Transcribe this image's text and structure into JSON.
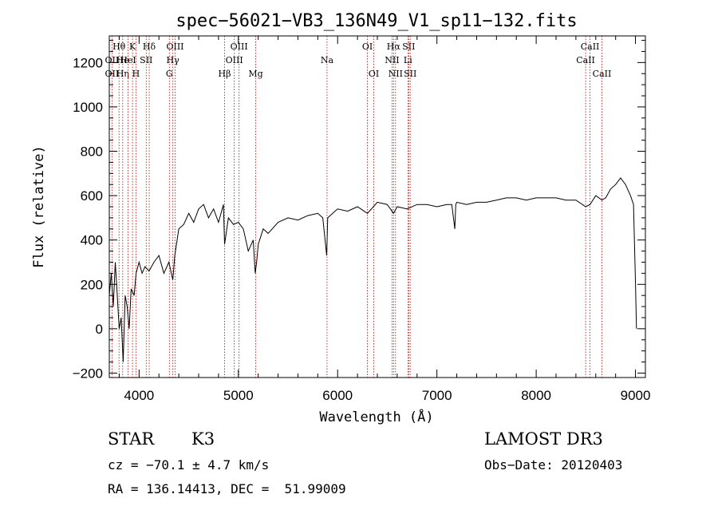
{
  "chart_data": {
    "type": "line",
    "title": "spec−56021−VB3_136N49_V1_sp11−132.fits",
    "xlabel": "Wavelength (Å)",
    "ylabel": "Flux (relative)",
    "xlim": [
      3700,
      9100
    ],
    "ylim": [
      -220,
      1320
    ],
    "xticks": [
      4000,
      5000,
      6000,
      7000,
      8000,
      9000
    ],
    "yticks": [
      -200,
      0,
      200,
      400,
      600,
      800,
      1000,
      1200
    ],
    "series": [
      {
        "name": "spectrum",
        "x": [
          3700,
          3720,
          3740,
          3760,
          3780,
          3800,
          3820,
          3840,
          3860,
          3880,
          3900,
          3920,
          3950,
          3970,
          4000,
          4030,
          4060,
          4100,
          4150,
          4200,
          4250,
          4300,
          4340,
          4360,
          4400,
          4450,
          4500,
          4550,
          4600,
          4650,
          4700,
          4750,
          4800,
          4850,
          4861,
          4900,
          4950,
          5000,
          5050,
          5100,
          5150,
          5170,
          5184,
          5200,
          5250,
          5300,
          5400,
          5500,
          5600,
          5700,
          5800,
          5850,
          5890,
          5900,
          5950,
          6000,
          6100,
          6200,
          6300,
          6400,
          6500,
          6563,
          6600,
          6700,
          6800,
          6900,
          7000,
          7100,
          7150,
          7180,
          7190,
          7200,
          7300,
          7400,
          7500,
          7600,
          7700,
          7800,
          7900,
          8000,
          8100,
          8200,
          8300,
          8400,
          8498,
          8542,
          8600,
          8662,
          8700,
          8750,
          8800,
          8850,
          8900,
          8950,
          8980,
          9000,
          9010
        ],
        "values": [
          150,
          250,
          100,
          300,
          150,
          0,
          50,
          -150,
          150,
          100,
          0,
          180,
          150,
          250,
          300,
          250,
          280,
          260,
          300,
          330,
          250,
          300,
          220,
          330,
          450,
          470,
          520,
          480,
          540,
          560,
          500,
          540,
          480,
          560,
          380,
          500,
          470,
          480,
          450,
          350,
          400,
          250,
          300,
          380,
          450,
          430,
          480,
          500,
          490,
          510,
          520,
          500,
          330,
          500,
          520,
          540,
          530,
          550,
          520,
          570,
          560,
          520,
          550,
          540,
          560,
          560,
          550,
          560,
          560,
          450,
          560,
          570,
          560,
          570,
          570,
          580,
          590,
          590,
          580,
          590,
          590,
          590,
          580,
          580,
          550,
          560,
          600,
          580,
          590,
          630,
          650,
          680,
          650,
          600,
          560,
          200,
          0
        ]
      }
    ],
    "line_markers": [
      {
        "label": "Hθ",
        "x": 3798,
        "row": 0
      },
      {
        "label": "OII",
        "x": 3727,
        "row": 1
      },
      {
        "label": "OII",
        "x": 3727,
        "row": 2
      },
      {
        "label": "He",
        "x": 3835,
        "row": 1
      },
      {
        "label": "Hη",
        "x": 3835,
        "row": 2
      },
      {
        "label": "K",
        "x": 3934,
        "row": 0
      },
      {
        "label": "HeI",
        "x": 3889,
        "row": 1
      },
      {
        "label": "H",
        "x": 3969,
        "row": 2
      },
      {
        "label": "SII",
        "x": 4072,
        "row": 1
      },
      {
        "label": "Hδ",
        "x": 4102,
        "row": 0
      },
      {
        "label": "OIII",
        "x": 4363,
        "row": 0
      },
      {
        "label": "Hγ",
        "x": 4340,
        "row": 1
      },
      {
        "label": "G",
        "x": 4305,
        "row": 2
      },
      {
        "label": "OIII",
        "x": 5007,
        "row": 0
      },
      {
        "label": "OIII",
        "x": 4959,
        "row": 1
      },
      {
        "label": "Hβ",
        "x": 4861,
        "row": 2
      },
      {
        "label": "Mg",
        "x": 5175,
        "row": 2
      },
      {
        "label": "Na",
        "x": 5893,
        "row": 1
      },
      {
        "label": "OI",
        "x": 6300,
        "row": 0
      },
      {
        "label": "OI",
        "x": 6364,
        "row": 2
      },
      {
        "label": "Hα",
        "x": 6563,
        "row": 0
      },
      {
        "label": "SII",
        "x": 6716,
        "row": 0
      },
      {
        "label": "NII",
        "x": 6548,
        "row": 1
      },
      {
        "label": "Li",
        "x": 6708,
        "row": 1
      },
      {
        "label": "NII",
        "x": 6583,
        "row": 2
      },
      {
        "label": "SII",
        "x": 6731,
        "row": 2
      },
      {
        "label": "CaII",
        "x": 8542,
        "row": 0
      },
      {
        "label": "CaII",
        "x": 8498,
        "row": 1
      },
      {
        "label": "CaII",
        "x": 8662,
        "row": 2
      }
    ]
  },
  "info": {
    "class": "STAR",
    "subclass": "K3",
    "survey": "LAMOST DR3",
    "cz": "cz = −70.1 ± 4.7 km/s",
    "obsdate": "Obs−Date: 20120403",
    "radec": "RA = 136.14413, DEC =  51.99009"
  }
}
